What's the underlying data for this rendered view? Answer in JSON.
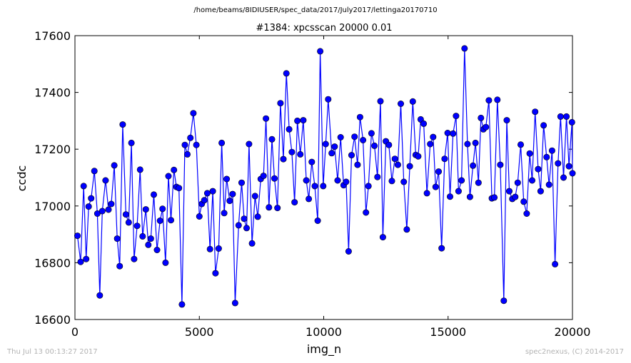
{
  "figure": {
    "suptitle": "/home/beams/8IDIUSER/spec_data/2017/July2017/lettinga20170710",
    "timestamp": "Thu Jul 13 00:13:27 2017",
    "credit": "spec2nexus, (C) 2014-2017"
  },
  "chart_data": {
    "type": "line",
    "title": "#1384: xpcsscan 20000 0.01",
    "xlabel": "img_n",
    "ylabel": "ccdc",
    "xlim": [
      0,
      20000
    ],
    "ylim": [
      16600,
      17600
    ],
    "xticks": [
      0,
      5000,
      10000,
      15000,
      20000
    ],
    "yticks": [
      16600,
      16800,
      17000,
      17200,
      17400,
      17600
    ],
    "grid": false,
    "marker": "circle",
    "line_color": "#0000ff",
    "series": [
      {
        "name": "",
        "x": [
          100,
          230,
          350,
          450,
          550,
          650,
          780,
          900,
          1000,
          1100,
          1230,
          1350,
          1460,
          1580,
          1700,
          1800,
          1920,
          2050,
          2160,
          2270,
          2380,
          2500,
          2620,
          2720,
          2850,
          2950,
          3050,
          3170,
          3300,
          3420,
          3520,
          3640,
          3760,
          3860,
          3980,
          4080,
          4180,
          4300,
          4420,
          4520,
          4640,
          4760,
          4880,
          5000,
          5100,
          5200,
          5320,
          5430,
          5540,
          5650,
          5780,
          5900,
          6000,
          6100,
          6220,
          6340,
          6440,
          6580,
          6700,
          6800,
          6900,
          7000,
          7120,
          7240,
          7350,
          7470,
          7580,
          7680,
          7800,
          7920,
          8020,
          8140,
          8260,
          8380,
          8500,
          8610,
          8720,
          8830,
          8940,
          9060,
          9180,
          9300,
          9400,
          9520,
          9640,
          9760,
          9860,
          9980,
          10080,
          10180,
          10320,
          10440,
          10560,
          10680,
          10800,
          10900,
          11000,
          11120,
          11240,
          11360,
          11460,
          11580,
          11700,
          11800,
          11920,
          12040,
          12160,
          12280,
          12380,
          12500,
          12620,
          12740,
          12860,
          12980,
          13100,
          13220,
          13340,
          13460,
          13580,
          13700,
          13800,
          13900,
          14020,
          14150,
          14280,
          14400,
          14500,
          14620,
          14740,
          14860,
          14980,
          15080,
          15200,
          15320,
          15420,
          15540,
          15660,
          15780,
          15880,
          16000,
          16100,
          16220,
          16320,
          16420,
          16520,
          16640,
          16760,
          16860,
          16980,
          17100,
          17240,
          17360,
          17460,
          17580,
          17700,
          17800,
          17920,
          18040,
          18160,
          18280,
          18380,
          18500,
          18620,
          18720,
          18840,
          18960,
          19060,
          19180,
          19300,
          19420,
          19520,
          19640,
          19760,
          19860,
          19980,
          20000
        ],
        "values": [
          16895,
          16803,
          17070,
          16813,
          16998,
          17027,
          17123,
          16973,
          16685,
          16982,
          17090,
          16987,
          17007,
          17143,
          16885,
          16788,
          17287,
          16970,
          16942,
          17222,
          16813,
          16930,
          17128,
          16893,
          16988,
          16863,
          16885,
          17040,
          16845,
          16948,
          16990,
          16800,
          17105,
          16950,
          17127,
          17067,
          17063,
          16653,
          17215,
          17182,
          17240,
          17327,
          17215,
          16963,
          17007,
          17020,
          17045,
          16848,
          17052,
          16763,
          16850,
          17222,
          16975,
          17095,
          17018,
          17042,
          16658,
          16932,
          17082,
          16955,
          16922,
          17218,
          16868,
          17035,
          16962,
          17095,
          17106,
          17308,
          16995,
          17235,
          17097,
          16993,
          17362,
          17165,
          17467,
          17270,
          17190,
          17013,
          17300,
          17182,
          17302,
          17090,
          17025,
          17155,
          17070,
          16948,
          17545,
          17070,
          17218,
          17376,
          17186,
          17209,
          17090,
          17242,
          17073,
          17085,
          16840,
          17179,
          17244,
          17145,
          17313,
          17232,
          16977,
          17070,
          17256,
          17212,
          17102,
          17369,
          16890,
          17228,
          17215,
          17088,
          17166,
          17145,
          17360,
          17085,
          16917,
          17140,
          17368,
          17180,
          17175,
          17305,
          17290,
          17045,
          17218,
          17243,
          17067,
          17121,
          16851,
          17166,
          17257,
          17033,
          17255,
          17317,
          17052,
          17090,
          17555,
          17218,
          17032,
          17142,
          17222,
          17082,
          17310,
          17270,
          17278,
          17372,
          17027,
          17030,
          17374,
          17145,
          16666,
          17302,
          17052,
          17025,
          17032,
          17082,
          17216,
          17015,
          16973,
          17185,
          17090,
          17332,
          17130,
          17052,
          17284,
          17172,
          17075,
          17195,
          16795,
          17150,
          17315,
          17100,
          17315,
          17140,
          17295,
          17115
        ]
      }
    ]
  }
}
